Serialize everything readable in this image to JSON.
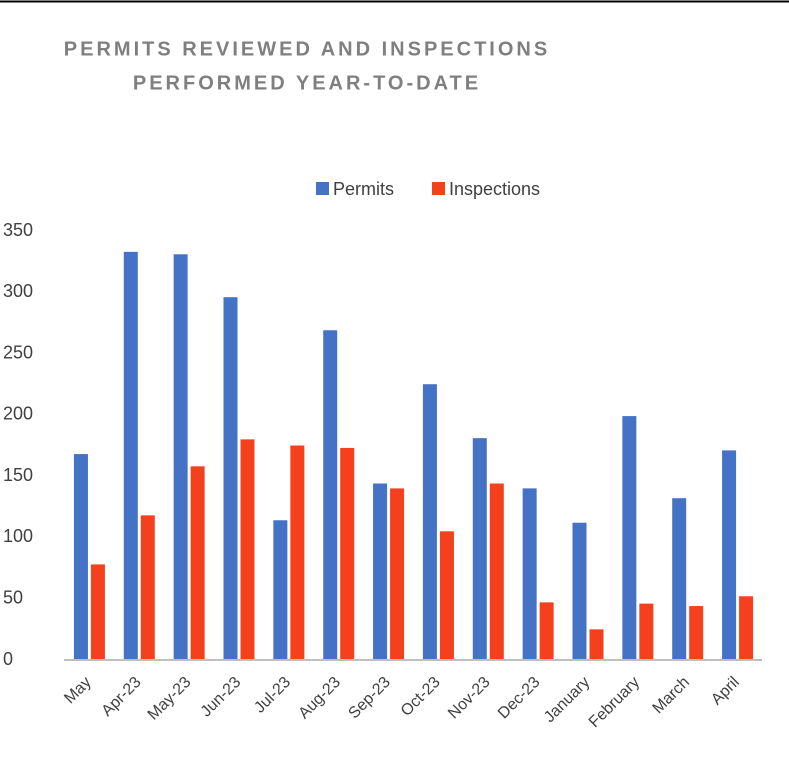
{
  "chart_data": {
    "type": "bar",
    "title": [
      "PERMITS REVIEWED AND INSPECTIONS",
      "PERFORMED YEAR-TO-DATE"
    ],
    "categories": [
      "May",
      "Apr-23",
      "May-23",
      "Jun-23",
      "Jul-23",
      "Aug-23",
      "Sep-23",
      "Oct-23",
      "Nov-23",
      "Dec-23",
      "January",
      "February",
      "March",
      "April"
    ],
    "series": [
      {
        "name": "Permits",
        "color": "#4472c4",
        "values": [
          168,
          333,
          331,
          296,
          114,
          269,
          144,
          225,
          181,
          140,
          112,
          199,
          132,
          171
        ]
      },
      {
        "name": "Inspections",
        "color": "#f4401c",
        "values": [
          78,
          118,
          158,
          180,
          175,
          173,
          140,
          105,
          144,
          47,
          25,
          46,
          44,
          52
        ]
      }
    ],
    "ylim": [
      0,
      350
    ],
    "yticks": [
      0,
      50,
      100,
      150,
      200,
      250,
      300,
      350
    ],
    "grid": false,
    "legend": "top"
  }
}
